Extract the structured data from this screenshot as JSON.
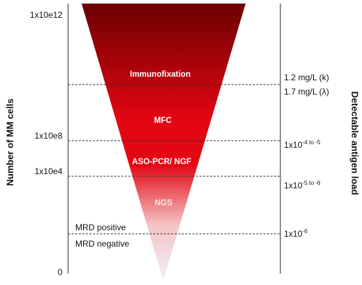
{
  "left_axis": {
    "title": "Number of MM cells",
    "ticks": [
      "1x10e12",
      "1x10e8",
      "1x10e4",
      "0"
    ]
  },
  "right_axis": {
    "title": "Detectable antigen load",
    "labels": {
      "k": "1.2 mg/L (k)",
      "lambda": "1.7 mg/L (λ)",
      "mfc_base": "1x10",
      "mfc_exp": "-4 to -5",
      "aso_base": "1x10",
      "aso_exp": "-5 to -6",
      "ngs_base": "1x10",
      "ngs_exp": "-6"
    }
  },
  "techniques": {
    "immunofixation": "Immunofixation",
    "mfc": "MFC",
    "aso_pcr": "ASO-PCR/ NGF",
    "ngs": "NGS"
  },
  "mrd": {
    "positive": "MRD positive",
    "negative": "MRD negative"
  },
  "colors": {
    "funnel_top": "#6b0000",
    "funnel_mid": "#e30613",
    "funnel_low": "#f5c4c6",
    "funnel_tip": "#eef0f8",
    "dashed_line": "#333333",
    "axis_line": "#222222"
  }
}
